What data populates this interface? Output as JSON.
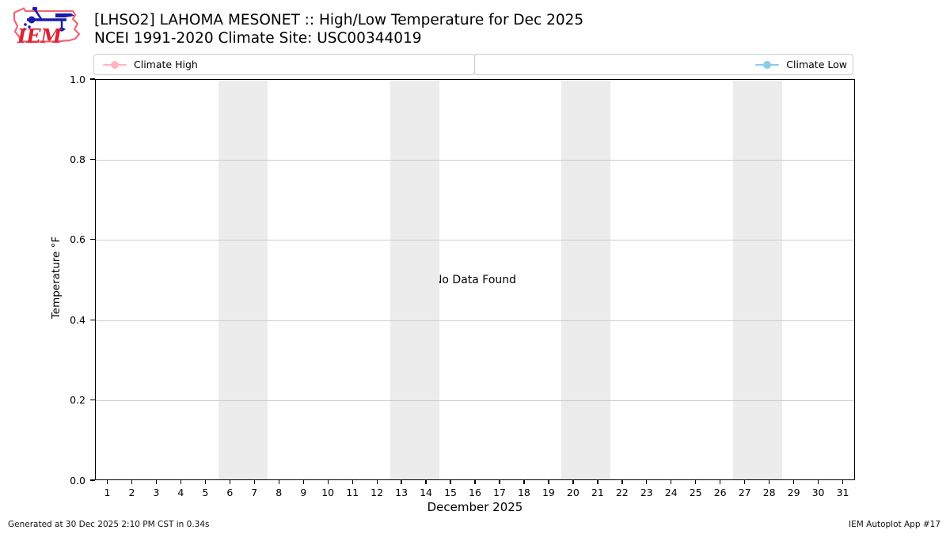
{
  "header": {
    "title": "[LHSO2] LAHOMA MESONET :: High/Low Temperature for Dec 2025",
    "subtitle": "NCEI 1991-2020 Climate Site: USC00344019",
    "logo_text": "IEM"
  },
  "legend": {
    "entries": [
      {
        "label": "Climate High",
        "color": "#ffb6c1"
      },
      {
        "label": "Climate Low",
        "color": "#87ceeb"
      }
    ]
  },
  "footer": {
    "generated": "Generated at 30 Dec 2025 2:10 PM CST in 0.34s",
    "app": "IEM Autoplot App #17"
  },
  "chart_data": {
    "type": "line",
    "title": "[LHSO2] LAHOMA MESONET :: High/Low Temperature for Dec 2025",
    "subtitle": "NCEI 1991-2020 Climate Site: USC00344019",
    "xlabel": "December 2025",
    "ylabel": "Temperature °F",
    "no_data_text": "No Data Found",
    "xlim": [
      0.5,
      31.5
    ],
    "ylim": [
      0.0,
      1.0
    ],
    "grid": true,
    "legend_position": "top",
    "x_ticks": [
      1,
      2,
      3,
      4,
      5,
      6,
      7,
      8,
      9,
      10,
      11,
      12,
      13,
      14,
      15,
      16,
      17,
      18,
      19,
      20,
      21,
      22,
      23,
      24,
      25,
      26,
      27,
      28,
      29,
      30,
      31
    ],
    "y_ticks": [
      {
        "v": 0.0,
        "label": "0.0"
      },
      {
        "v": 0.2,
        "label": "0.2"
      },
      {
        "v": 0.4,
        "label": "0.4"
      },
      {
        "v": 0.6,
        "label": "0.6"
      },
      {
        "v": 0.8,
        "label": "0.8"
      },
      {
        "v": 1.0,
        "label": "1.0"
      }
    ],
    "weekend_bands": [
      [
        5.5,
        7.5
      ],
      [
        12.5,
        14.5
      ],
      [
        19.5,
        21.5
      ],
      [
        26.5,
        28.5
      ]
    ],
    "band_color": "#ececec",
    "grid_color": "#cccccc",
    "series": [
      {
        "name": "Climate High",
        "color": "#ffb6c1",
        "x": [],
        "values": []
      },
      {
        "name": "Climate Low",
        "color": "#87ceeb",
        "x": [],
        "values": []
      }
    ]
  }
}
